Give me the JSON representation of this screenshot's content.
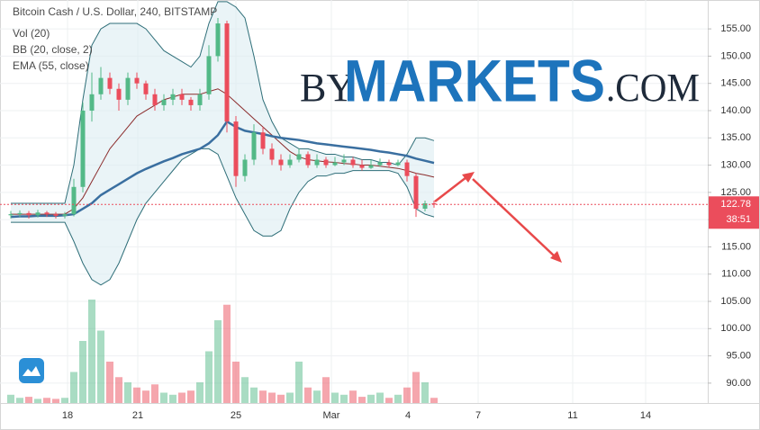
{
  "chart_data": {
    "type": "candlestick",
    "title": "Bitcoin Cash / U.S. Dollar, 240, BITSTAMP",
    "studies": [
      "Vol (20)",
      "BB (20, close, 2)",
      "EMA (55, close)"
    ],
    "watermark": [
      "BY",
      "MARKETS",
      ".COM"
    ],
    "x_labels": [
      "18",
      "21",
      "25",
      "Mar",
      "4",
      "7",
      "11",
      "14"
    ],
    "ylim": [
      86.35,
      160.3
    ],
    "yticks": [
      {
        "value": 90,
        "label": "90.00"
      },
      {
        "value": 95,
        "label": "95.00"
      },
      {
        "value": 100,
        "label": "100.00"
      },
      {
        "value": 105,
        "label": "105.00"
      },
      {
        "value": 110,
        "label": "110.00"
      },
      {
        "value": 115,
        "label": "115.00"
      },
      {
        "value": 120,
        "label": "120.00"
      },
      {
        "value": 125,
        "label": "125.00"
      },
      {
        "value": 130,
        "label": "130.00"
      },
      {
        "value": 135,
        "label": "135.00"
      },
      {
        "value": 140,
        "label": "140.00"
      },
      {
        "value": 145,
        "label": "145.00"
      },
      {
        "value": 150,
        "label": "150.00"
      },
      {
        "value": 155,
        "label": "155.00"
      }
    ],
    "grid": true,
    "up_color": "#53b987",
    "down_color": "#eb4d5c",
    "open": [
      120.8,
      121,
      121.2,
      120.8,
      121.3,
      121,
      120.7,
      121,
      126,
      140,
      143,
      146,
      144,
      142,
      146,
      145,
      143,
      141,
      142,
      143,
      142,
      141,
      143,
      150,
      156,
      138,
      128,
      131,
      136,
      133,
      131,
      130,
      131,
      132,
      130,
      131,
      130,
      130.5,
      131,
      130,
      129.5,
      130,
      130.5,
      130,
      130.5,
      128,
      122,
      123
    ],
    "high": [
      121.6,
      121.7,
      121.6,
      121.8,
      121.6,
      121.4,
      121.4,
      127.5,
      141.5,
      147,
      148,
      147,
      145,
      147,
      147,
      145.5,
      144,
      143,
      144,
      144,
      142.5,
      144,
      152,
      157,
      156.5,
      139,
      132,
      137.5,
      137,
      134,
      132,
      132,
      133,
      132.5,
      132,
      131.5,
      131.5,
      132,
      131.5,
      131,
      131,
      131.2,
      131,
      131,
      131,
      128.5,
      123.5,
      123.5
    ],
    "low": [
      120.2,
      120.5,
      120.2,
      120.4,
      120.5,
      120.2,
      120.2,
      120.6,
      125,
      138,
      142,
      143,
      140,
      141,
      144,
      142,
      140,
      140,
      141,
      141,
      140,
      140,
      142,
      149,
      136,
      126,
      127,
      130,
      132,
      130,
      129,
      129.5,
      130.5,
      129.5,
      129.5,
      129.5,
      129.8,
      130,
      129.5,
      129,
      129.3,
      129.7,
      129.5,
      129.8,
      127,
      120.5,
      121.5,
      122.2
    ],
    "close": [
      121,
      121.2,
      120.8,
      121.3,
      121,
      120.7,
      121,
      126,
      140,
      143,
      146,
      144,
      142,
      146,
      145,
      143,
      141,
      142,
      143,
      142,
      141,
      143,
      150,
      156,
      138,
      128,
      131,
      136,
      133,
      131,
      130,
      131,
      132,
      130,
      131,
      130,
      130.5,
      131,
      130,
      129.5,
      130,
      130.5,
      130,
      130.5,
      128,
      122,
      123,
      122.78
    ],
    "volume": [
      8,
      5,
      6,
      4,
      5,
      4,
      5,
      30,
      60,
      100,
      70,
      40,
      25,
      20,
      15,
      12,
      18,
      10,
      8,
      10,
      12,
      20,
      50,
      80,
      95,
      40,
      25,
      15,
      12,
      10,
      8,
      10,
      40,
      15,
      12,
      25,
      10,
      8,
      12,
      6,
      8,
      10,
      5,
      8,
      15,
      30,
      20,
      5
    ],
    "bands": {
      "color": "#2e6e78",
      "fill": "#dcedf1",
      "upper": [
        123,
        123,
        123,
        123,
        123,
        123,
        123,
        130,
        142,
        152,
        155,
        156,
        156,
        156,
        156,
        155,
        153,
        151,
        150,
        149,
        148,
        150,
        156,
        160,
        160,
        159,
        157,
        150,
        142,
        138,
        135,
        134,
        133,
        133,
        132.5,
        132,
        132,
        131.5,
        131.5,
        131,
        131,
        130.5,
        130.5,
        130,
        132,
        135,
        135,
        134.5
      ],
      "lower": [
        119.5,
        119.5,
        119.5,
        119.5,
        119.5,
        119.5,
        119.5,
        116,
        112,
        109,
        108,
        109,
        112,
        116,
        120,
        123,
        125,
        127,
        129,
        131,
        132,
        133,
        133,
        132,
        128,
        124,
        121,
        118,
        117,
        117,
        118,
        122,
        125,
        127,
        128,
        128,
        128.5,
        128.5,
        129,
        129,
        129,
        129,
        129,
        128.5,
        126,
        122,
        121,
        120.5
      ]
    },
    "lines": [
      {
        "color": "#8b2c2c",
        "width": 1,
        "values": [
          121,
          121,
          121,
          121,
          121,
          121,
          121,
          122,
          124,
          127,
          130,
          133,
          135,
          137,
          139,
          140,
          141,
          142,
          142.5,
          143,
          143,
          143,
          143.5,
          144,
          143,
          141.5,
          140,
          138.5,
          137,
          135.5,
          134,
          132.5,
          131.5,
          131,
          130.8,
          130.6,
          130.5,
          130.3,
          130.2,
          130,
          130,
          129.8,
          129.6,
          129.4,
          129,
          128.5,
          128.2,
          127.8
        ]
      },
      {
        "color": "#3a6fa0",
        "width": 2.5,
        "values": [
          120.5,
          120.6,
          120.6,
          120.7,
          120.7,
          120.7,
          120.8,
          121,
          122,
          123,
          124.5,
          125.5,
          126.5,
          127.5,
          128.5,
          129.3,
          130,
          130.7,
          131.3,
          132,
          132.5,
          133,
          134,
          135.5,
          138,
          137,
          136.3,
          136,
          135.7,
          135.3,
          135,
          134.8,
          134.6,
          134.3,
          134,
          133.8,
          133.6,
          133.4,
          133.2,
          133,
          132.8,
          132.5,
          132.3,
          132,
          131.7,
          131.2,
          130.8,
          130.4
        ]
      }
    ],
    "last_price": 122.78,
    "countdown": "38:51",
    "price_color": "#eb4d5c"
  }
}
